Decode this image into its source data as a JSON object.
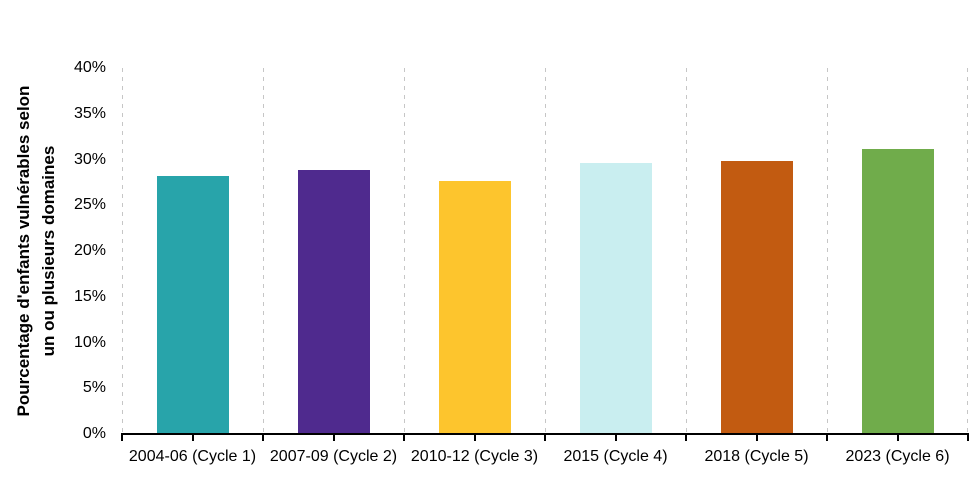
{
  "chart_data": {
    "type": "bar",
    "title": "",
    "categories": [
      "2004-06 (Cycle 1)",
      "2007-09 (Cycle 2)",
      "2010-12 (Cycle 3)",
      "2015 (Cycle 4)",
      "2018 (Cycle 5)",
      "2023 (Cycle 6)"
    ],
    "values": [
      28.2,
      28.8,
      27.7,
      29.6,
      29.8,
      31.2
    ],
    "bar_colors": [
      "#28A4AA",
      "#4F2A8E",
      "#FDC52D",
      "#C9EEF0",
      "#C25B11",
      "#70AC4B"
    ],
    "xlabel": "",
    "ylabel": "Pourcentage d'enfants vulnérables selon un ou plusieurs domaines",
    "ylabel_lines": [
      "Pourcentage d'enfants vulnérables selon",
      "un ou plusieurs domaines"
    ],
    "ylim": [
      0,
      40
    ],
    "ytick_step": 5,
    "ytick_labels": [
      "0%",
      "5%",
      "10%",
      "15%",
      "20%",
      "25%",
      "30%",
      "35%",
      "40%"
    ],
    "grid": {
      "vertical_dashed_at_category_boundaries": true,
      "horizontal": false,
      "color": "#C6C6C6"
    },
    "axis_color": "#000000",
    "text_color": "#000000",
    "legend": "none",
    "background_color": "#FFFFFF"
  }
}
